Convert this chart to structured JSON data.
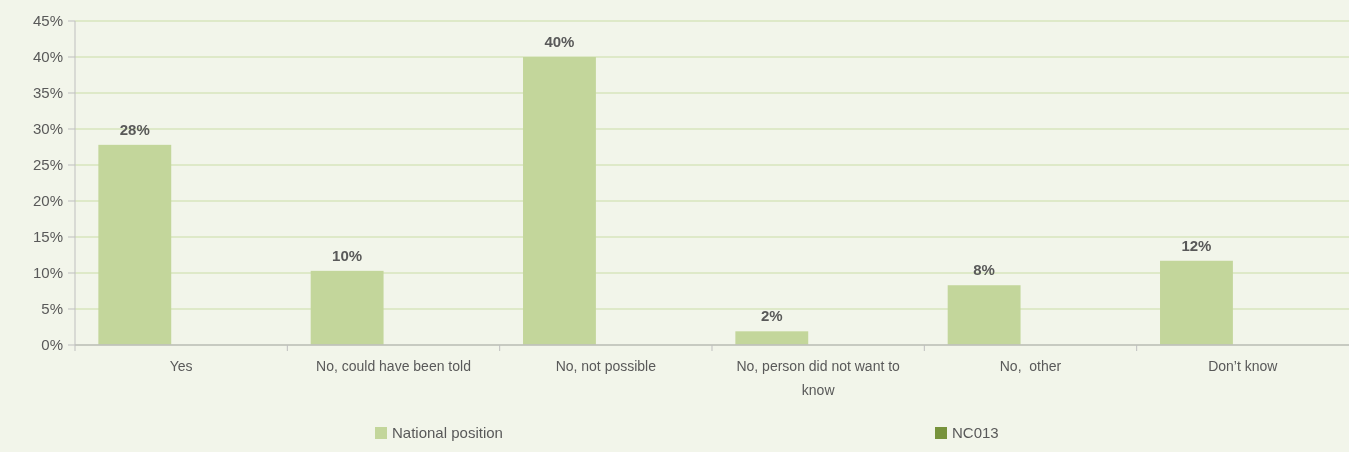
{
  "chart_data": {
    "type": "bar",
    "categories": [
      "Yes",
      "No, could have been told",
      "No, not possible",
      "No, person did not want to know",
      "No,  other",
      "Don’t know"
    ],
    "series": [
      {
        "name": "National position",
        "color": "#c3d69b",
        "values": [
          27.8,
          10.3,
          40,
          1.9,
          8.3,
          11.7
        ],
        "value_labels": [
          "28%",
          "10%",
          "40%",
          "2%",
          "8%",
          "12%"
        ]
      },
      {
        "name": "NC013",
        "color": "#77933c",
        "values": [
          null,
          null,
          null,
          null,
          null,
          null
        ]
      }
    ],
    "ylim": [
      0,
      45
    ],
    "yticks": [
      {
        "value": 0,
        "label": "0%"
      },
      {
        "value": 5,
        "label": "5%"
      },
      {
        "value": 10,
        "label": "10%"
      },
      {
        "value": 15,
        "label": "15%"
      },
      {
        "value": 20,
        "label": "20%"
      },
      {
        "value": 25,
        "label": "25%"
      },
      {
        "value": 30,
        "label": "30%"
      },
      {
        "value": 35,
        "label": "35%"
      },
      {
        "value": 40,
        "label": "40%"
      },
      {
        "value": 45,
        "label": "45%"
      }
    ],
    "grid": "y",
    "legend": "bottom"
  }
}
